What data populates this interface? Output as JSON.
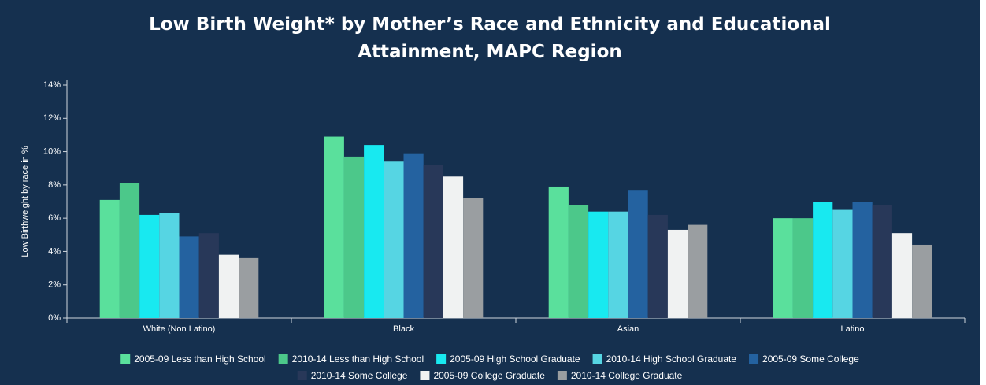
{
  "chart_data": {
    "type": "bar",
    "title": "Low Birth Weight* by Mother’s Race and Ethnicity and Educational Attainment, MAPC Region",
    "y_label": "Low Birthweight by race in %",
    "categories": [
      "White (Non Latino)",
      "Black",
      "Asian",
      "Latino"
    ],
    "series": [
      {
        "name": "2005-09 Less than High School",
        "color": "#5ae09c",
        "values": [
          7.1,
          10.9,
          7.9,
          6.0
        ]
      },
      {
        "name": "2010-14 Less than High School",
        "color": "#4cc88a",
        "values": [
          8.1,
          9.7,
          6.8,
          6.0
        ]
      },
      {
        "name": "2005-09 High School Graduate",
        "color": "#18e9f0",
        "values": [
          6.2,
          10.4,
          6.4,
          7.0
        ]
      },
      {
        "name": "2010-14 High School Graduate",
        "color": "#56d5e3",
        "values": [
          6.3,
          9.4,
          6.4,
          6.5
        ]
      },
      {
        "name": "2005-09 Some College",
        "color": "#2462a0",
        "values": [
          4.9,
          9.9,
          7.7,
          7.0
        ]
      },
      {
        "name": "2010-14 Some College",
        "color": "#283859",
        "values": [
          5.1,
          9.2,
          6.2,
          6.8
        ]
      },
      {
        "name": "2005-09 College Graduate",
        "color": "#f0f2f2",
        "values": [
          3.8,
          8.5,
          5.3,
          5.1
        ]
      },
      {
        "name": "2010-14 College Graduate",
        "color": "#9a9ea1",
        "values": [
          3.6,
          7.2,
          5.6,
          4.4
        ]
      }
    ],
    "ylim": [
      0,
      14
    ],
    "yticks": [
      {
        "value": 0,
        "label": "0%"
      },
      {
        "value": 2,
        "label": "2%"
      },
      {
        "value": 4,
        "label": "4%"
      },
      {
        "value": 6,
        "label": "6%"
      },
      {
        "value": 8,
        "label": "8%"
      },
      {
        "value": 10,
        "label": "10%"
      },
      {
        "value": 12,
        "label": "12%"
      },
      {
        "value": 14,
        "label": "14%"
      }
    ],
    "grid": false
  }
}
